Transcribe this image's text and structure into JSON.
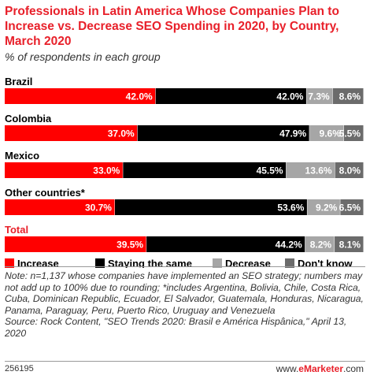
{
  "chart_data": {
    "type": "bar",
    "orientation": "horizontal",
    "stacked": true,
    "title": "Professionals in Latin America Whose Companies Plan to Increase vs. Decrease SEO Spending in 2020, by Country, March 2020",
    "subtitle": "% of respondents in each group",
    "categories": [
      "Brazil",
      "Colombia",
      "Mexico",
      "Other countries*",
      "Total"
    ],
    "series": [
      {
        "name": "Increase",
        "color": "#ff0000",
        "values": [
          42.0,
          37.0,
          33.0,
          30.7,
          39.5
        ],
        "labels": [
          "42.0%",
          "37.0%",
          "33.0%",
          "30.7%",
          "39.5%"
        ]
      },
      {
        "name": "Staying the same",
        "color": "#000000",
        "values": [
          42.0,
          47.9,
          45.5,
          53.6,
          44.2
        ],
        "labels": [
          "42.0%",
          "47.9%",
          "45.5%",
          "53.6%",
          "44.2%"
        ]
      },
      {
        "name": "Decrease",
        "color": "#a6a6a6",
        "values": [
          7.3,
          9.6,
          13.6,
          9.2,
          8.2
        ],
        "labels": [
          "7.3%",
          "9.6%",
          "13.6%",
          "9.2%",
          "8.2%"
        ]
      },
      {
        "name": "Don't know",
        "color": "#6b6b6b",
        "values": [
          8.6,
          5.5,
          8.0,
          6.5,
          8.1
        ],
        "labels": [
          "8.6%",
          "5.5%",
          "8.0%",
          "6.5%",
          "8.1%"
        ]
      }
    ],
    "legend_position": "bottom",
    "highlight_category_color": "#e8202a",
    "grid": false
  },
  "note": "Note: n=1,137 whose companies have implemented an SEO strategy; numbers may not add up to 100% due to rounding; *includes Argentina, Bolivia, Chile, Costa Rica, Cuba, Dominican Republic, Ecuador, El Salvador, Guatemala, Honduras, Nicaragua, Panama, Paraguay, Peru, Puerto Rico, Uruguay and Venezuela",
  "source": "Source: Rock Content, \"SEO Trends 2020: Brasil e América Hispânica,\" April 13, 2020",
  "footer": {
    "id": "256195",
    "brand_prefix": "www.",
    "brand_name": "eMarketer",
    "brand_suffix": ".com"
  }
}
